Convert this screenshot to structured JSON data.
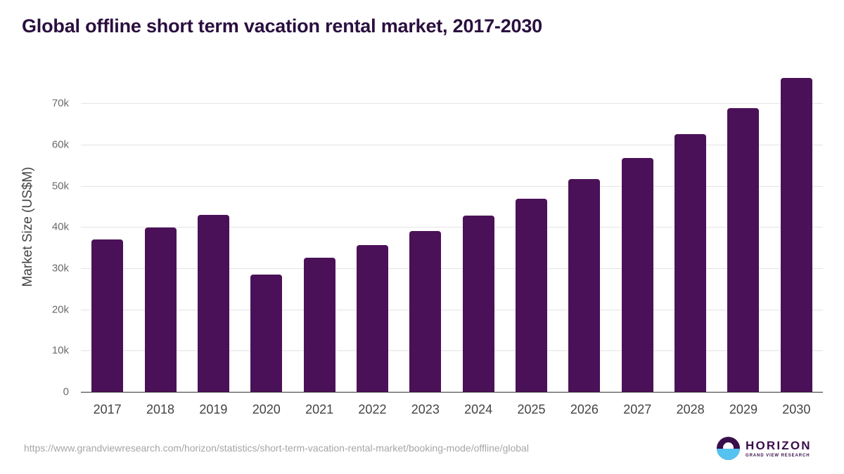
{
  "header": {
    "title": "Global offline short term vacation rental market, 2017-2030"
  },
  "footer": {
    "source_url": "https://www.grandviewresearch.com/horizon/statistics/short-term-vacation-rental-market/booking-mode/offline/global",
    "logo_main": "HORIZON",
    "logo_sub": "GRAND VIEW RESEARCH"
  },
  "colors": {
    "bar": "#4b1158",
    "title": "#2b0f3f",
    "logo_top": "#3a0e4a",
    "logo_bottom": "#55c3ef"
  },
  "chart_data": {
    "type": "bar",
    "title": "Global offline short term vacation rental market, 2017-2030",
    "xlabel": "",
    "ylabel": "Market Size (US$M)",
    "categories": [
      "2017",
      "2018",
      "2019",
      "2020",
      "2021",
      "2022",
      "2023",
      "2024",
      "2025",
      "2026",
      "2027",
      "2028",
      "2029",
      "2030"
    ],
    "values": [
      37000,
      39900,
      42900,
      28400,
      32500,
      35600,
      39000,
      42800,
      46800,
      51600,
      56700,
      62500,
      68800,
      76200
    ],
    "ylim": [
      0,
      76300
    ],
    "yticks": [
      0,
      10000,
      20000,
      30000,
      40000,
      50000,
      60000,
      70000
    ],
    "ytick_labels": [
      "0",
      "10k",
      "20k",
      "30k",
      "40k",
      "50k",
      "60k",
      "70k"
    ],
    "grid": true,
    "legend": null
  }
}
